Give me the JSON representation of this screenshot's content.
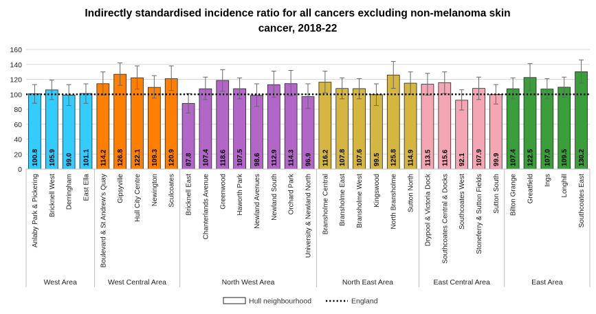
{
  "chart_data": {
    "type": "bar",
    "title_lines": [
      "Indirectly standardised incidence ratio for all cancers excluding non-melanoma skin",
      "cancer, 2018-22"
    ],
    "ylim": [
      0,
      160
    ],
    "yticks": [
      0,
      20,
      40,
      60,
      80,
      100,
      120,
      140,
      160
    ],
    "grid": true,
    "reference_line": {
      "name": "England",
      "value": 100
    },
    "legend": {
      "position": "bottom",
      "entries": [
        {
          "label": "Hull neighbourhood",
          "kind": "bar"
        },
        {
          "label": "England",
          "kind": "dotted-line"
        }
      ]
    },
    "groups": [
      {
        "name": "West Area",
        "color": "#33CCFF",
        "items": [
          {
            "name": "Anlaby Park & Pickering",
            "value": 100.8,
            "label": "100.8",
            "ci": [
              88,
              113
            ]
          },
          {
            "name": "Bricknell West",
            "value": 105.9,
            "label": "105.9",
            "ci": [
              93,
              119
            ]
          },
          {
            "name": "Derringham",
            "value": 99.0,
            "label": "99.0",
            "ci": [
              85,
              113
            ]
          },
          {
            "name": "East Ella",
            "value": 101.1,
            "label": "101.1",
            "ci": [
              88,
              114
            ]
          }
        ]
      },
      {
        "name": "West Central Area",
        "color": "#FF8000",
        "items": [
          {
            "name": "Boulevard & St Andrew's Quay",
            "value": 114.2,
            "label": "114.2",
            "ci": [
              99,
              130
            ]
          },
          {
            "name": "Gipsyville",
            "value": 126.8,
            "label": "126.8",
            "ci": [
              112,
              142
            ]
          },
          {
            "name": "Hull City Centre",
            "value": 122.1,
            "label": "122.1",
            "ci": [
              107,
              138
            ]
          },
          {
            "name": "Newington",
            "value": 109.3,
            "label": "109.3",
            "ci": [
              95,
              125
            ]
          },
          {
            "name": "Sculcoates",
            "value": 120.9,
            "label": "120.9",
            "ci": [
              105,
              138
            ]
          }
        ]
      },
      {
        "name": "North West Area",
        "color": "#B266C8",
        "items": [
          {
            "name": "Bricknell East",
            "value": 87.8,
            "label": "87.8",
            "ci": [
              75,
              101
            ]
          },
          {
            "name": "Chanterlands Avenue",
            "value": 107.4,
            "label": "107.4",
            "ci": [
              93,
              123
            ]
          },
          {
            "name": "Greenwood",
            "value": 118.6,
            "label": "118.6",
            "ci": [
              104,
              133
            ]
          },
          {
            "name": "Haworth Park",
            "value": 107.5,
            "label": "107.5",
            "ci": [
              94,
              122
            ]
          },
          {
            "name": "Newland Avenues",
            "value": 98.6,
            "label": "98.6",
            "ci": [
              84,
              114
            ]
          },
          {
            "name": "Newland South",
            "value": 112.9,
            "label": "112.9",
            "ci": [
              96,
              131
            ]
          },
          {
            "name": "Orchard Park",
            "value": 114.3,
            "label": "114.3",
            "ci": [
              98,
              132
            ]
          },
          {
            "name": "University & Newland North",
            "value": 96.9,
            "label": "96.9",
            "ci": [
              81,
              114
            ]
          }
        ]
      },
      {
        "name": "North East Area",
        "color": "#D4B640",
        "items": [
          {
            "name": "Bransholme Central",
            "value": 116.2,
            "label": "116.2",
            "ci": [
              102,
              131
            ]
          },
          {
            "name": "Bransholme East",
            "value": 107.8,
            "label": "107.8",
            "ci": [
              94,
              122
            ]
          },
          {
            "name": "Bransholme West",
            "value": 107.6,
            "label": "107.6",
            "ci": [
              94,
              121
            ]
          },
          {
            "name": "Kingswood",
            "value": 99.5,
            "label": "99.5",
            "ci": [
              85,
              114
            ]
          },
          {
            "name": "North Bransholme",
            "value": 125.8,
            "label": "125.8",
            "ci": [
              108,
              144
            ]
          },
          {
            "name": "Sutton North",
            "value": 114.9,
            "label": "114.9",
            "ci": [
              100,
              130
            ]
          }
        ]
      },
      {
        "name": "East Central Area",
        "color": "#F4A6B4",
        "items": [
          {
            "name": "Drypool & Victoria Dock",
            "value": 113.5,
            "label": "113.5",
            "ci": [
              99,
              128
            ]
          },
          {
            "name": "Southcoates Central & Docks",
            "value": 115.6,
            "label": "115.6",
            "ci": [
              101,
              130
            ]
          },
          {
            "name": "Southcoates West",
            "value": 92.1,
            "label": "92.1",
            "ci": [
              79,
              106
            ]
          },
          {
            "name": "Stoneferry & Sutton Fields",
            "value": 107.9,
            "label": "107.9",
            "ci": [
              93,
              123
            ]
          },
          {
            "name": "Sutton South",
            "value": 99.9,
            "label": "99.9",
            "ci": [
              87,
              113
            ]
          }
        ]
      },
      {
        "name": "East Area",
        "color": "#3A9E3A",
        "items": [
          {
            "name": "Bilton Grange",
            "value": 107.4,
            "label": "107.4",
            "ci": [
              94,
              122
            ]
          },
          {
            "name": "Greatfield",
            "value": 122.5,
            "label": "122.5",
            "ci": [
              105,
              141
            ]
          },
          {
            "name": "Ings",
            "value": 107.0,
            "label": "107.0",
            "ci": [
              94,
              121
            ]
          },
          {
            "name": "Longhill",
            "value": 109.5,
            "label": "109.5",
            "ci": [
              96,
              123
            ]
          },
          {
            "name": "Southcoates East",
            "value": 130.2,
            "label": "130.2",
            "ci": [
              115,
              146
            ]
          }
        ]
      }
    ]
  }
}
